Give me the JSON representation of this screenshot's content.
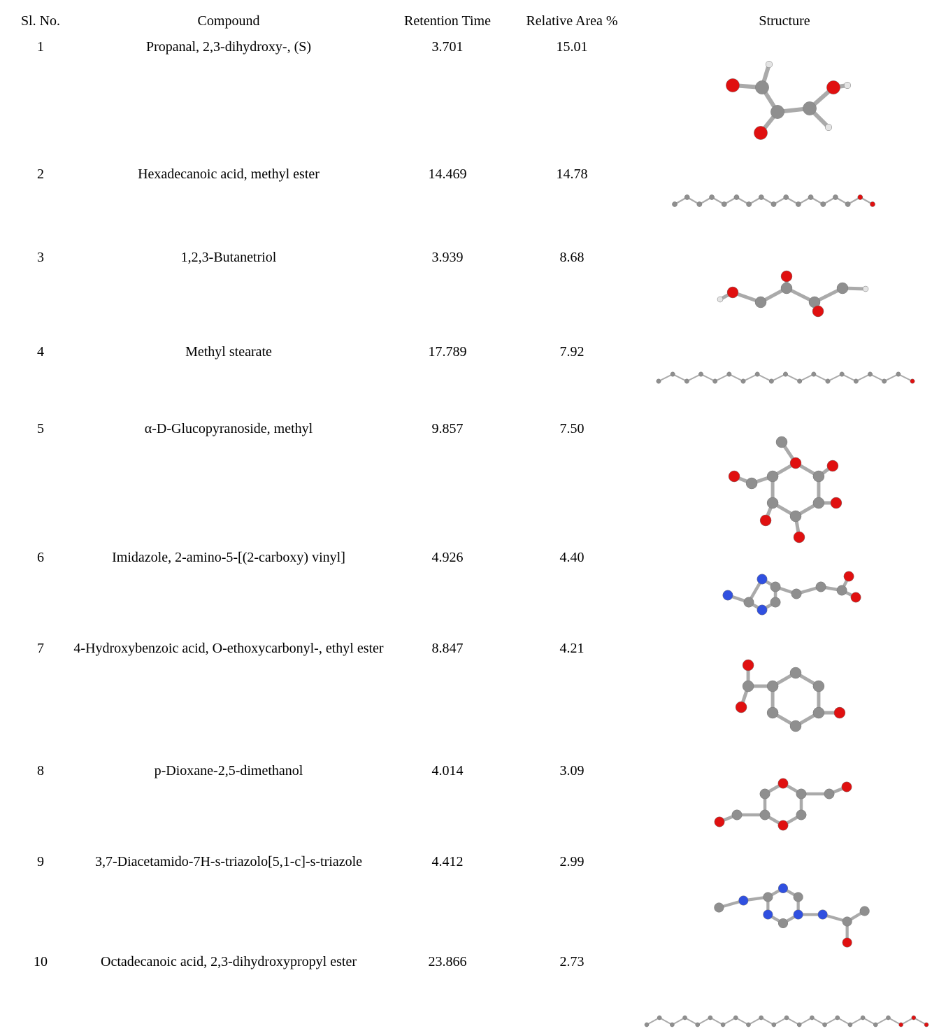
{
  "table": {
    "header": [
      "Sl. No.",
      "Compound",
      "Retention Time",
      "Relative Area %",
      "Structure"
    ],
    "rows": [
      [
        "1",
        "Propanal, 2,3-dihydroxy-, (S)",
        "3.701",
        "15.01"
      ],
      [
        "2",
        "Hexadecanoic acid, methyl ester",
        "14.469",
        "14.78"
      ],
      [
        "3",
        "1,2,3-Butanetriol",
        "3.939",
        "8.68"
      ],
      [
        "4",
        "Methyl stearate",
        "17.789",
        "7.92"
      ],
      [
        "5",
        "α-D-Glucopyranoside, methyl",
        "9.857",
        "7.50"
      ],
      [
        "6",
        "Imidazole, 2-amino-5-[(2-carboxy) vinyl]",
        "4.926",
        "4.40"
      ],
      [
        "7",
        "4-Hydroxybenzoic acid, O-ethoxycarbonyl-, ethyl ester",
        "8.847",
        "4.21"
      ],
      [
        "8",
        "p-Dioxane-2,5-dimethanol",
        "4.014",
        "3.09"
      ],
      [
        "9",
        "3,7-Diacetamido-7H-s-triazolo[5,1-c]-s-triazole",
        "4.412",
        "2.99"
      ],
      [
        "10",
        "Octadecanoic acid, 2,3-dihydroxypropyl ester",
        "23.866",
        "2.73"
      ]
    ]
  }
}
